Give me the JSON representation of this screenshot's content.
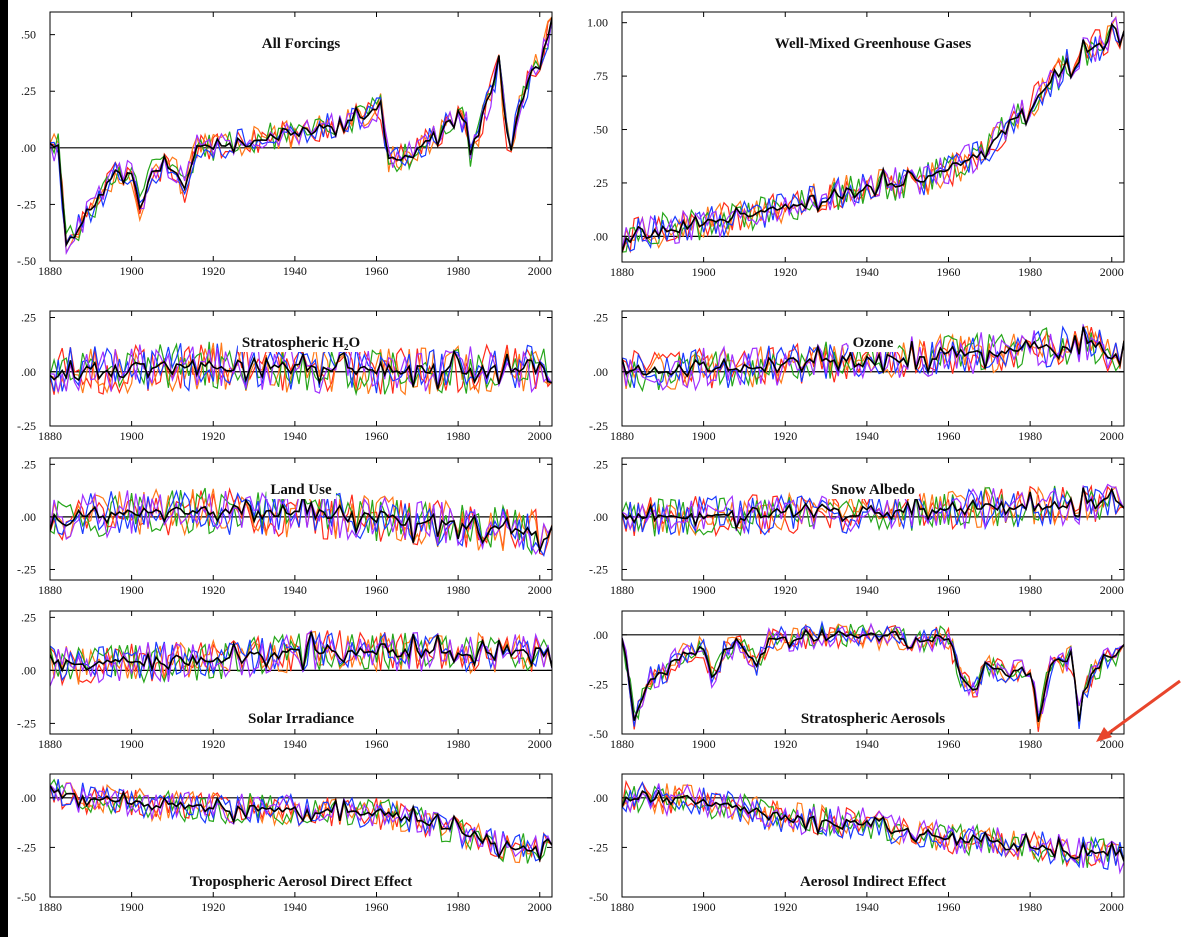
{
  "colors": {
    "mean": "#000000",
    "runs": [
      "#ff2a1a",
      "#ff7a1a",
      "#26a61a",
      "#1a3aff",
      "#a030ff"
    ],
    "arrow": "#e8452c"
  },
  "chart_data": [
    {
      "type": "line",
      "title": "All Forcings",
      "title_pos": "top",
      "xlim": [
        1880,
        2003
      ],
      "ylim": [
        -0.5,
        0.6
      ],
      "yticks": [
        -0.5,
        -0.25,
        0,
        0.25,
        0.5
      ],
      "ytick_labels": [
        "-.50",
        "-.25",
        ".00",
        ".25",
        ".50"
      ],
      "xticks": [
        1880,
        1900,
        1920,
        1940,
        1960,
        1980,
        2000
      ],
      "xtick_labels": [
        "1880",
        "1900",
        "1920",
        "1940",
        "1960",
        "1980",
        "2000"
      ],
      "zero_line": true,
      "key_points": [
        [
          1880,
          0
        ],
        [
          1882,
          0
        ],
        [
          1884,
          -0.42
        ],
        [
          1890,
          -0.27
        ],
        [
          1896,
          -0.12
        ],
        [
          1900,
          -0.1
        ],
        [
          1902,
          -0.27
        ],
        [
          1905,
          -0.1
        ],
        [
          1910,
          -0.08
        ],
        [
          1913,
          -0.18
        ],
        [
          1916,
          0
        ],
        [
          1920,
          0
        ],
        [
          1930,
          0.04
        ],
        [
          1940,
          0.06
        ],
        [
          1950,
          0.1
        ],
        [
          1958,
          0.15
        ],
        [
          1961,
          0.18
        ],
        [
          1963,
          -0.05
        ],
        [
          1966,
          -0.05
        ],
        [
          1975,
          0.05
        ],
        [
          1980,
          0.15
        ],
        [
          1982,
          0.1
        ],
        [
          1983,
          -0.05
        ],
        [
          1987,
          0.18
        ],
        [
          1990,
          0.36
        ],
        [
          1992,
          0.05
        ],
        [
          1993,
          0
        ],
        [
          1995,
          0.2
        ],
        [
          2000,
          0.4
        ],
        [
          2003,
          0.55
        ]
      ],
      "noise": 0.04
    },
    {
      "type": "line",
      "title": "Well-Mixed Greenhouse Gases",
      "title_pos": "top",
      "xlim": [
        1880,
        2003
      ],
      "ylim": [
        -0.12,
        1.05
      ],
      "yticks": [
        0,
        0.25,
        0.5,
        0.75,
        1.0
      ],
      "ytick_labels": [
        ".00",
        ".25",
        ".50",
        ".75",
        "1.00"
      ],
      "xticks": [
        1880,
        1900,
        1920,
        1940,
        1960,
        1980,
        2000
      ],
      "xtick_labels": [
        "1880",
        "1900",
        "1920",
        "1940",
        "1960",
        "1980",
        "2000"
      ],
      "zero_line": true,
      "key_points": [
        [
          1880,
          0
        ],
        [
          1900,
          0.06
        ],
        [
          1920,
          0.14
        ],
        [
          1940,
          0.23
        ],
        [
          1950,
          0.25
        ],
        [
          1960,
          0.3
        ],
        [
          1970,
          0.42
        ],
        [
          1980,
          0.62
        ],
        [
          1990,
          0.82
        ],
        [
          2003,
          0.97
        ]
      ],
      "noise": 0.05
    },
    {
      "type": "line",
      "title": "Stratospheric H₂O",
      "title_pos": "top",
      "xlim": [
        1880,
        2003
      ],
      "ylim": [
        -0.25,
        0.28
      ],
      "yticks": [
        -0.25,
        0,
        0.25
      ],
      "ytick_labels": [
        "-.25",
        ".00",
        ".25"
      ],
      "xticks": [
        1880,
        1900,
        1920,
        1940,
        1960,
        1980,
        2000
      ],
      "xtick_labels": [
        "1880",
        "1900",
        "1920",
        "1940",
        "1960",
        "1980",
        "2000"
      ],
      "zero_line": true,
      "key_points": [
        [
          1880,
          0
        ],
        [
          1920,
          0.03
        ],
        [
          1960,
          0.0
        ],
        [
          2003,
          0.02
        ]
      ],
      "noise": 0.07
    },
    {
      "type": "line",
      "title": "Ozone",
      "title_pos": "top",
      "xlim": [
        1880,
        2003
      ],
      "ylim": [
        -0.25,
        0.28
      ],
      "yticks": [
        -0.25,
        0,
        0.25
      ],
      "ytick_labels": [
        "-.25",
        ".00",
        ".25"
      ],
      "xticks": [
        1880,
        1900,
        1920,
        1940,
        1960,
        1980,
        2000
      ],
      "xtick_labels": [
        "1880",
        "1900",
        "1920",
        "1940",
        "1960",
        "1980",
        "2000"
      ],
      "zero_line": true,
      "key_points": [
        [
          1880,
          0
        ],
        [
          1920,
          0.03
        ],
        [
          1960,
          0.08
        ],
        [
          1980,
          0.1
        ],
        [
          1995,
          0.13
        ],
        [
          2003,
          0.06
        ]
      ],
      "noise": 0.06
    },
    {
      "type": "line",
      "title": "Land Use",
      "title_pos": "top",
      "xlim": [
        1880,
        2003
      ],
      "ylim": [
        -0.3,
        0.28
      ],
      "yticks": [
        -0.25,
        0,
        0.25
      ],
      "ytick_labels": [
        "-.25",
        ".00",
        ".25"
      ],
      "xticks": [
        1880,
        1900,
        1920,
        1940,
        1960,
        1980,
        2000
      ],
      "xtick_labels": [
        "1880",
        "1900",
        "1920",
        "1940",
        "1960",
        "1980",
        "2000"
      ],
      "zero_line": true,
      "key_points": [
        [
          1880,
          0
        ],
        [
          1920,
          0.03
        ],
        [
          1960,
          -0.01
        ],
        [
          1980,
          -0.04
        ],
        [
          2003,
          -0.08
        ]
      ],
      "noise": 0.07
    },
    {
      "type": "line",
      "title": "Snow Albedo",
      "title_pos": "top",
      "xlim": [
        1880,
        2003
      ],
      "ylim": [
        -0.3,
        0.28
      ],
      "yticks": [
        -0.25,
        0,
        0.25
      ],
      "ytick_labels": [
        "-.25",
        ".00",
        ".25"
      ],
      "xticks": [
        1880,
        1900,
        1920,
        1940,
        1960,
        1980,
        2000
      ],
      "xtick_labels": [
        "1880",
        "1900",
        "1920",
        "1940",
        "1960",
        "1980",
        "2000"
      ],
      "zero_line": true,
      "key_points": [
        [
          1880,
          0
        ],
        [
          1940,
          0.02
        ],
        [
          1980,
          0.05
        ],
        [
          2003,
          0.06
        ]
      ],
      "noise": 0.06
    },
    {
      "type": "line",
      "title": "Solar Irradiance",
      "title_pos": "bottom",
      "xlim": [
        1880,
        2003
      ],
      "ylim": [
        -0.3,
        0.28
      ],
      "yticks": [
        -0.25,
        0,
        0.25
      ],
      "ytick_labels": [
        "-.25",
        ".00",
        ".25"
      ],
      "xticks": [
        1880,
        1900,
        1920,
        1940,
        1960,
        1980,
        2000
      ],
      "xtick_labels": [
        "1880",
        "1900",
        "1920",
        "1940",
        "1960",
        "1980",
        "2000"
      ],
      "zero_line": true,
      "key_points": [
        [
          1880,
          0.02
        ],
        [
          1920,
          0.05
        ],
        [
          1950,
          0.1
        ],
        [
          1980,
          0.08
        ],
        [
          2003,
          0.08
        ]
      ],
      "noise": 0.06
    },
    {
      "type": "line",
      "title": "Stratospheric Aerosols",
      "title_pos": "bottom",
      "xlim": [
        1880,
        2003
      ],
      "ylim": [
        -0.5,
        0.12
      ],
      "yticks": [
        -0.5,
        -0.25,
        0
      ],
      "ytick_labels": [
        "-.50",
        "-.25",
        ".00"
      ],
      "xticks": [
        1880,
        1900,
        1920,
        1940,
        1960,
        1980,
        2000
      ],
      "xtick_labels": [
        "1880",
        "1900",
        "1920",
        "1940",
        "1960",
        "1980",
        "2000"
      ],
      "zero_line": true,
      "key_points": [
        [
          1880,
          0
        ],
        [
          1883,
          -0.42
        ],
        [
          1887,
          -0.22
        ],
        [
          1890,
          -0.2
        ],
        [
          1895,
          -0.08
        ],
        [
          1900,
          -0.06
        ],
        [
          1902,
          -0.22
        ],
        [
          1905,
          -0.08
        ],
        [
          1910,
          -0.06
        ],
        [
          1913,
          -0.15
        ],
        [
          1916,
          -0.03
        ],
        [
          1930,
          0
        ],
        [
          1950,
          -0.02
        ],
        [
          1960,
          -0.02
        ],
        [
          1963,
          -0.2
        ],
        [
          1966,
          -0.3
        ],
        [
          1970,
          -0.15
        ],
        [
          1975,
          -0.2
        ],
        [
          1980,
          -0.15
        ],
        [
          1982,
          -0.45
        ],
        [
          1985,
          -0.15
        ],
        [
          1990,
          -0.12
        ],
        [
          1992,
          -0.42
        ],
        [
          1995,
          -0.2
        ],
        [
          2000,
          -0.1
        ],
        [
          2003,
          -0.1
        ]
      ],
      "noise": 0.04
    },
    {
      "type": "line",
      "title": "Tropospheric Aerosol Direct Effect",
      "title_pos": "bottom",
      "xlim": [
        1880,
        2003
      ],
      "ylim": [
        -0.5,
        0.12
      ],
      "yticks": [
        -0.5,
        -0.25,
        0
      ],
      "ytick_labels": [
        "-.50",
        "-.25",
        ".00"
      ],
      "xticks": [
        1880,
        1900,
        1920,
        1940,
        1960,
        1980,
        2000
      ],
      "xtick_labels": [
        "1880",
        "1900",
        "1920",
        "1940",
        "1960",
        "1980",
        "2000"
      ],
      "zero_line": true,
      "key_points": [
        [
          1880,
          0.02
        ],
        [
          1900,
          -0.03
        ],
        [
          1920,
          -0.05
        ],
        [
          1940,
          -0.06
        ],
        [
          1960,
          -0.08
        ],
        [
          1970,
          -0.1
        ],
        [
          1980,
          -0.18
        ],
        [
          1990,
          -0.24
        ],
        [
          2003,
          -0.26
        ]
      ],
      "noise": 0.05
    },
    {
      "type": "line",
      "title": "Aerosol Indirect Effect",
      "title_pos": "bottom",
      "xlim": [
        1880,
        2003
      ],
      "ylim": [
        -0.5,
        0.12
      ],
      "yticks": [
        -0.5,
        -0.25,
        0
      ],
      "ytick_labels": [
        "-.50",
        "-.25",
        ".00"
      ],
      "xticks": [
        1880,
        1900,
        1920,
        1940,
        1960,
        1980,
        2000
      ],
      "xtick_labels": [
        "1880",
        "1900",
        "1920",
        "1940",
        "1960",
        "1980",
        "2000"
      ],
      "zero_line": true,
      "key_points": [
        [
          1880,
          0.01
        ],
        [
          1900,
          -0.02
        ],
        [
          1920,
          -0.1
        ],
        [
          1940,
          -0.13
        ],
        [
          1960,
          -0.2
        ],
        [
          1980,
          -0.24
        ],
        [
          2003,
          -0.3
        ]
      ],
      "noise": 0.05
    }
  ]
}
